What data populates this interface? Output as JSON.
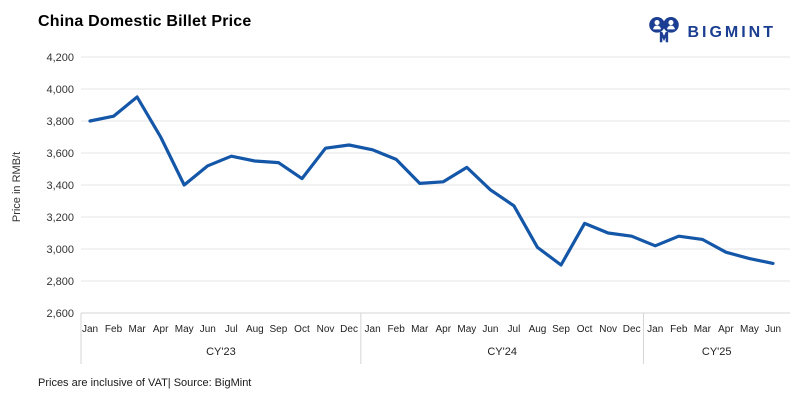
{
  "header": {
    "title": "China Domestic Billet Price"
  },
  "logo": {
    "text": "BIGMINT",
    "icon": "bigmint-people-icon",
    "brand_color": "#1B3E92"
  },
  "chart_data": {
    "type": "line",
    "title": "China Domestic Billet Price",
    "xlabel": "",
    "ylabel": "Price in RMB/t",
    "ylim": [
      2600,
      4200
    ],
    "yticks": [
      2600,
      2800,
      3000,
      3200,
      3400,
      3600,
      3800,
      4000,
      4200
    ],
    "grid": "horizontal",
    "legend": "none",
    "line_color": "#1457A8",
    "groups": [
      {
        "year": "CY'23",
        "months": [
          "Jan",
          "Feb",
          "Mar",
          "Apr",
          "May",
          "Jun",
          "Jul",
          "Aug",
          "Sep",
          "Oct",
          "Nov",
          "Dec"
        ],
        "values": [
          3800,
          3830,
          3950,
          3700,
          3400,
          3520,
          3580,
          3550,
          3540,
          3440,
          3630,
          3650
        ]
      },
      {
        "year": "CY'24",
        "months": [
          "Jan",
          "Feb",
          "Mar",
          "Apr",
          "May",
          "Jun",
          "Jul",
          "Aug",
          "Sep",
          "Oct",
          "Nov",
          "Dec"
        ],
        "values": [
          3620,
          3560,
          3410,
          3420,
          3510,
          3370,
          3270,
          3010,
          2900,
          3160,
          3100,
          3080
        ]
      },
      {
        "year": "CY'25",
        "months": [
          "Jan",
          "Feb",
          "Mar",
          "Apr",
          "May",
          "Jun"
        ],
        "values": [
          3020,
          3080,
          3060,
          2980,
          2940,
          2910
        ]
      }
    ]
  },
  "footer": {
    "note": "Prices are inclusive of VAT| Source: BigMint"
  },
  "colors": {
    "gridline": "#E6E6E6",
    "axis_line": "#D6D6D6",
    "tick_text": "#333333",
    "month_text": "#222222"
  }
}
